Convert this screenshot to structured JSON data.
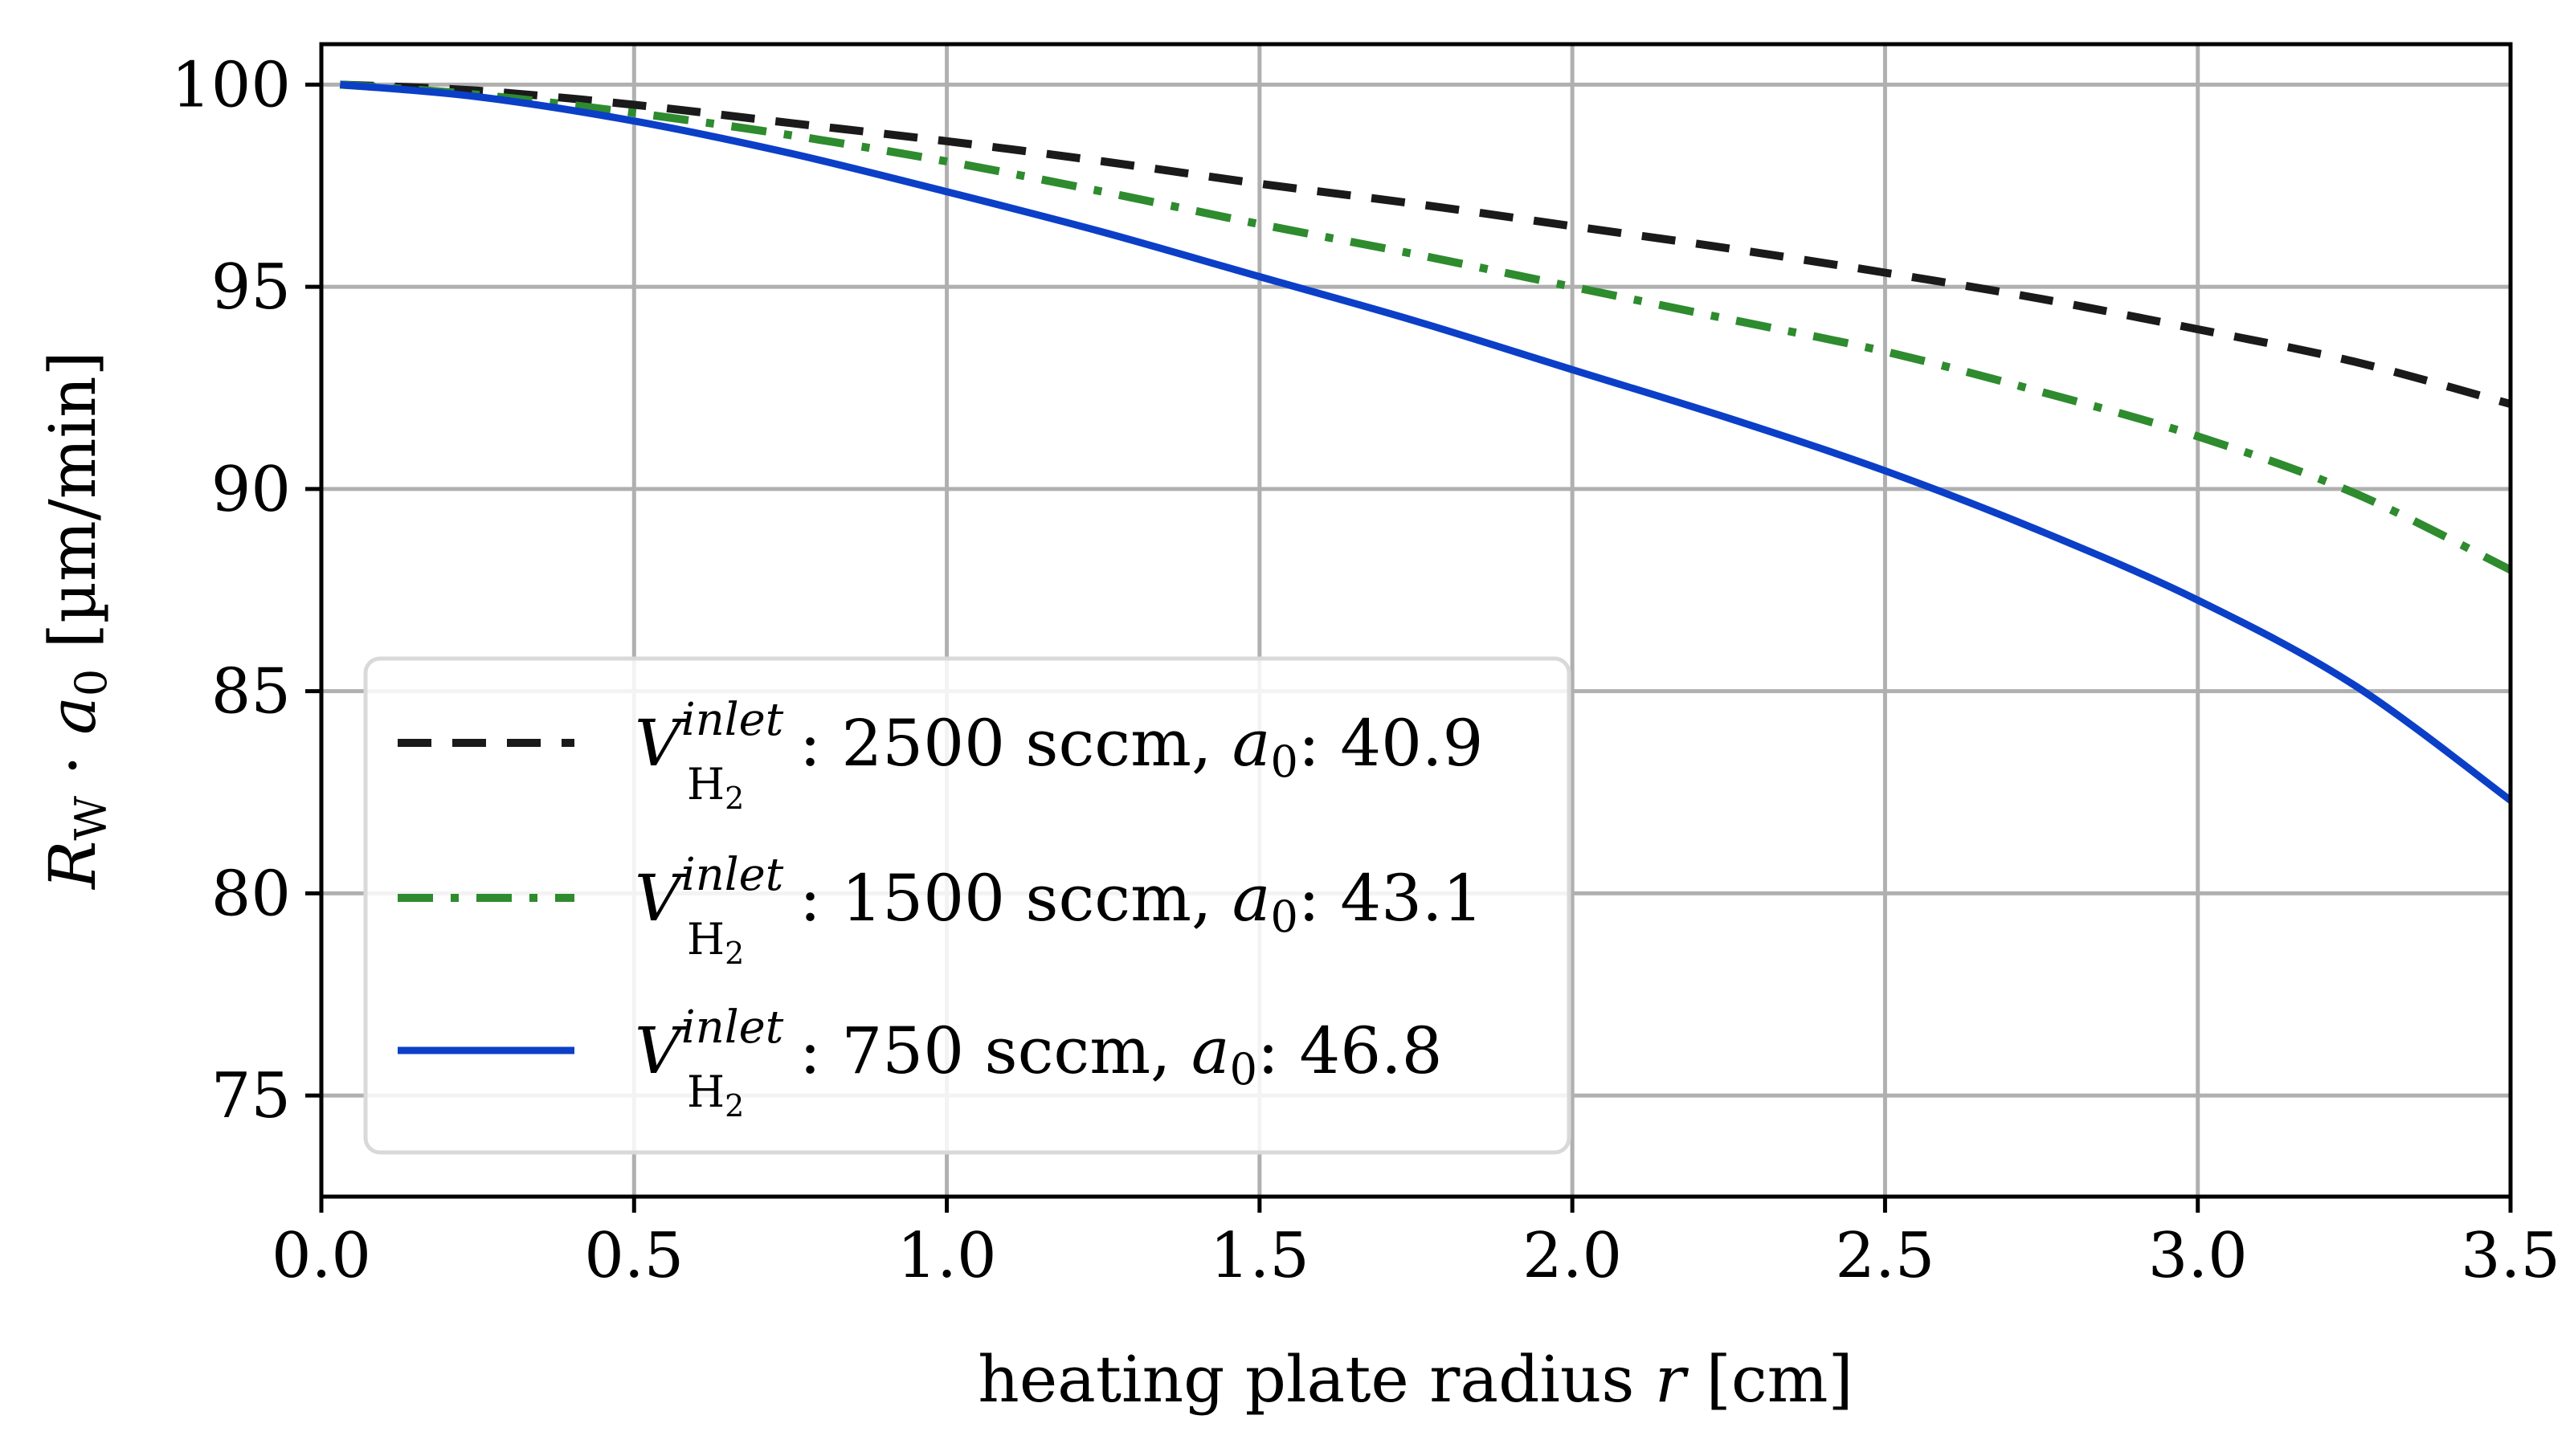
{
  "chart_data": {
    "type": "line",
    "title": "",
    "xlabel": "heating plate radius r [cm]",
    "ylabel": "R_W · a_0 [µm/min]",
    "xlim": [
      0.0,
      3.5
    ],
    "ylim": [
      72.5,
      101.0
    ],
    "grid": true,
    "legend_position": "lower-left",
    "x_ticks": [
      "0.0",
      "0.5",
      "1.0",
      "1.5",
      "2.0",
      "2.5",
      "3.0",
      "3.5"
    ],
    "y_ticks": [
      "75",
      "80",
      "85",
      "90",
      "95",
      "100"
    ],
    "x_tick_values": [
      0.0,
      0.5,
      1.0,
      1.5,
      2.0,
      2.5,
      3.0,
      3.5
    ],
    "y_tick_values": [
      75,
      80,
      85,
      90,
      95,
      100
    ],
    "x": [
      0.03,
      0.25,
      0.5,
      0.75,
      1.0,
      1.25,
      1.5,
      1.75,
      2.0,
      2.25,
      2.5,
      2.75,
      3.0,
      3.25,
      3.5
    ],
    "series": [
      {
        "name": "V_H2 inlet: 2500 sccm, a0: 40.9",
        "flow": "2500",
        "a0": "40.9",
        "color": "#1a1a1a",
        "style": "dashed",
        "values": [
          100.0,
          99.85,
          99.5,
          99.05,
          98.6,
          98.1,
          97.55,
          97.05,
          96.5,
          95.95,
          95.35,
          94.7,
          93.95,
          93.15,
          92.1
        ]
      },
      {
        "name": "V_H2 inlet: 1500 sccm, a0: 43.1",
        "flow": "1500",
        "a0": "43.1",
        "color": "#2e8b2e",
        "style": "dashdot",
        "values": [
          100.0,
          99.75,
          99.3,
          98.75,
          98.1,
          97.35,
          96.55,
          95.8,
          95.0,
          94.2,
          93.4,
          92.4,
          91.3,
          89.9,
          88.0
        ]
      },
      {
        "name": "V_H2 inlet: 750 sccm, a0: 46.8",
        "flow": "750",
        "a0": "46.8",
        "color": "#0b3fc7",
        "style": "solid",
        "values": [
          100.0,
          99.7,
          99.1,
          98.3,
          97.35,
          96.35,
          95.25,
          94.15,
          92.95,
          91.75,
          90.45,
          88.95,
          87.25,
          85.15,
          82.3
        ]
      }
    ]
  },
  "legend": {
    "var_symbol": "V",
    "sup": "inlet",
    "sub": "H",
    "sub_index": "2",
    "flow_unit": " sccm, ",
    "a_symbol": "a",
    "a_index": "0",
    "items": [
      {
        "flow": "2500",
        "a0": "40.9"
      },
      {
        "flow": "1500",
        "a0": "43.1"
      },
      {
        "flow": "750",
        "a0": "46.8"
      }
    ]
  },
  "axes": {
    "xlabel_pre": "heating plate radius ",
    "xlabel_var": "r",
    "xlabel_post": " [cm]",
    "ylabel_R": "R",
    "ylabel_R_sub": "W",
    "ylabel_dot": " · ",
    "ylabel_a": "a",
    "ylabel_a_sub": "0",
    "ylabel_unit": " [µm/min]"
  }
}
